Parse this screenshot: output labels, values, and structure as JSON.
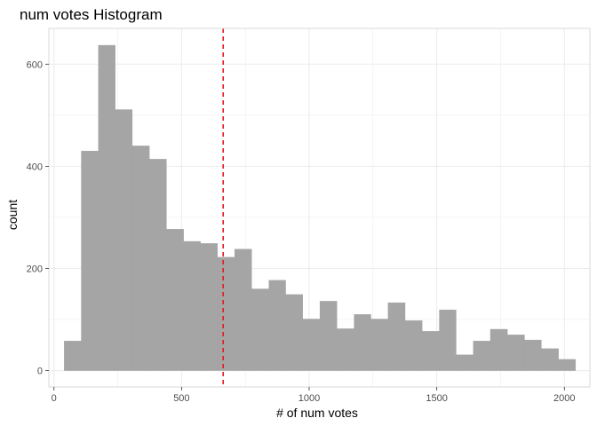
{
  "chart_data": {
    "type": "bar",
    "subtype": "histogram",
    "title": "num votes Histogram",
    "xlabel": "# of num votes",
    "ylabel": "count",
    "bin_width": 67,
    "bins": [
      {
        "x0": 40,
        "x1": 107,
        "count": 58
      },
      {
        "x0": 107,
        "x1": 174,
        "count": 430
      },
      {
        "x0": 174,
        "x1": 240,
        "count": 637
      },
      {
        "x0": 240,
        "x1": 307,
        "count": 511
      },
      {
        "x0": 307,
        "x1": 374,
        "count": 440
      },
      {
        "x0": 374,
        "x1": 441,
        "count": 414
      },
      {
        "x0": 441,
        "x1": 508,
        "count": 277
      },
      {
        "x0": 508,
        "x1": 574,
        "count": 253
      },
      {
        "x0": 574,
        "x1": 641,
        "count": 249
      },
      {
        "x0": 641,
        "x1": 708,
        "count": 222
      },
      {
        "x0": 708,
        "x1": 775,
        "count": 238
      },
      {
        "x0": 775,
        "x1": 842,
        "count": 160
      },
      {
        "x0": 842,
        "x1": 908,
        "count": 177
      },
      {
        "x0": 908,
        "x1": 975,
        "count": 149
      },
      {
        "x0": 975,
        "x1": 1042,
        "count": 101
      },
      {
        "x0": 1042,
        "x1": 1109,
        "count": 136
      },
      {
        "x0": 1109,
        "x1": 1176,
        "count": 82
      },
      {
        "x0": 1176,
        "x1": 1242,
        "count": 110
      },
      {
        "x0": 1242,
        "x1": 1309,
        "count": 101
      },
      {
        "x0": 1309,
        "x1": 1376,
        "count": 133
      },
      {
        "x0": 1376,
        "x1": 1443,
        "count": 98
      },
      {
        "x0": 1443,
        "x1": 1510,
        "count": 77
      },
      {
        "x0": 1510,
        "x1": 1576,
        "count": 119
      },
      {
        "x0": 1576,
        "x1": 1643,
        "count": 31
      },
      {
        "x0": 1643,
        "x1": 1710,
        "count": 58
      },
      {
        "x0": 1710,
        "x1": 1777,
        "count": 81
      },
      {
        "x0": 1777,
        "x1": 1844,
        "count": 70
      },
      {
        "x0": 1844,
        "x1": 1910,
        "count": 60
      },
      {
        "x0": 1910,
        "x1": 1977,
        "count": 43
      },
      {
        "x0": 1977,
        "x1": 2044,
        "count": 22
      }
    ],
    "reference_line": {
      "x": 663,
      "style": "dashed",
      "color": "#e41a1c"
    },
    "xlim": [
      -20,
      2100
    ],
    "ylim": [
      -32,
      670
    ],
    "x_ticks": [
      0,
      500,
      1000,
      1500,
      2000
    ],
    "y_ticks": [
      0,
      200,
      400,
      600
    ],
    "x_minor_ticks": [
      250,
      750,
      1250,
      1750
    ],
    "y_minor_ticks": [
      100,
      300,
      500
    ],
    "grid": true,
    "bar_color": "#a5a5a5",
    "bar_edge_color": "#a0a0a0",
    "grid_color": "#ebebeb",
    "panel_border_color": "#d9d9d9"
  }
}
